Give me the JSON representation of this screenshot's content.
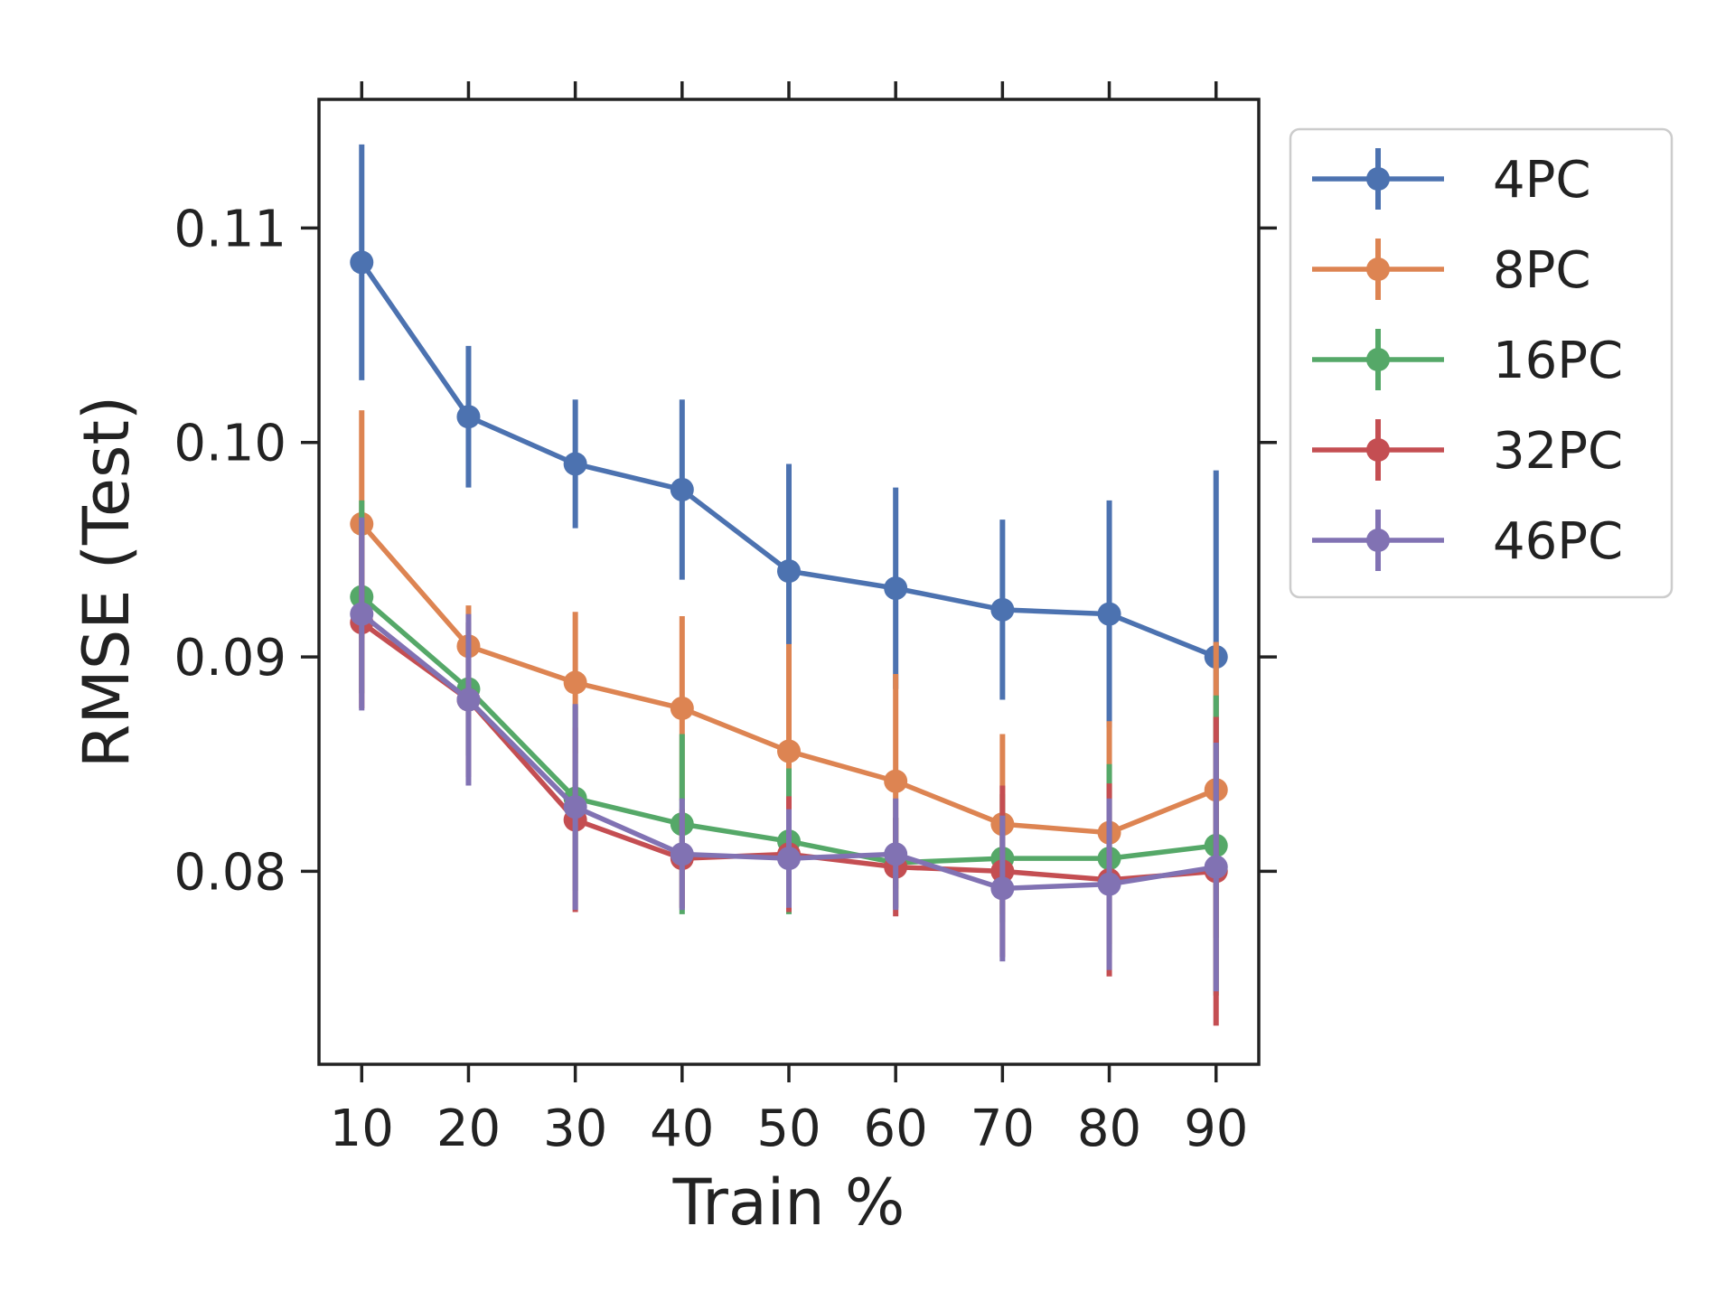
{
  "chart_data": {
    "type": "line",
    "xlabel": "Train %",
    "ylabel": "RMSE (Test)",
    "x": [
      10,
      20,
      30,
      40,
      50,
      60,
      70,
      80,
      90
    ],
    "x_tick_labels": [
      "10",
      "20",
      "30",
      "40",
      "50",
      "60",
      "70",
      "80",
      "90"
    ],
    "xlim": [
      6,
      94
    ],
    "ylim": [
      0.071,
      0.116
    ],
    "y_ticks": [
      0.08,
      0.09,
      0.1,
      0.11
    ],
    "y_tick_labels": [
      "0.08",
      "0.09",
      "0.10",
      "0.11"
    ],
    "grid": false,
    "legend_position": "outside-right",
    "series": [
      {
        "name": "4PC",
        "color": "#4c72b0",
        "values": [
          0.1084,
          0.1012,
          0.099,
          0.0978,
          0.094,
          0.0932,
          0.0922,
          0.092,
          0.09
        ],
        "errors": [
          0.0055,
          0.0033,
          0.003,
          0.0042,
          0.005,
          0.0047,
          0.0042,
          0.0053,
          0.0087
        ]
      },
      {
        "name": "8PC",
        "color": "#dd8452",
        "values": [
          0.0962,
          0.0905,
          0.0888,
          0.0876,
          0.0856,
          0.0842,
          0.0822,
          0.0818,
          0.0838
        ],
        "errors": [
          0.0053,
          0.0019,
          0.0033,
          0.0043,
          0.005,
          0.005,
          0.0042,
          0.0052,
          0.0069
        ]
      },
      {
        "name": "16PC",
        "color": "#55a868",
        "values": [
          0.0928,
          0.0885,
          0.0834,
          0.0822,
          0.0814,
          0.0804,
          0.0806,
          0.0806,
          0.0812
        ],
        "errors": [
          0.0045,
          0.0031,
          0.0043,
          0.0042,
          0.0034,
          0.0021,
          0.003,
          0.0044,
          0.007
        ]
      },
      {
        "name": "32PC",
        "color": "#c44e52",
        "values": [
          0.0916,
          0.088,
          0.0824,
          0.0806,
          0.0808,
          0.0802,
          0.08,
          0.0796,
          0.08
        ],
        "errors": [
          0.004,
          0.0036,
          0.0043,
          0.0023,
          0.0027,
          0.0023,
          0.004,
          0.0045,
          0.0072
        ]
      },
      {
        "name": "46PC",
        "color": "#8172b3",
        "values": [
          0.092,
          0.088,
          0.083,
          0.0808,
          0.0806,
          0.0808,
          0.0792,
          0.0794,
          0.0802
        ],
        "errors": [
          0.0045,
          0.004,
          0.0048,
          0.0026,
          0.0023,
          0.0026,
          0.0034,
          0.004,
          0.0058
        ]
      }
    ]
  }
}
